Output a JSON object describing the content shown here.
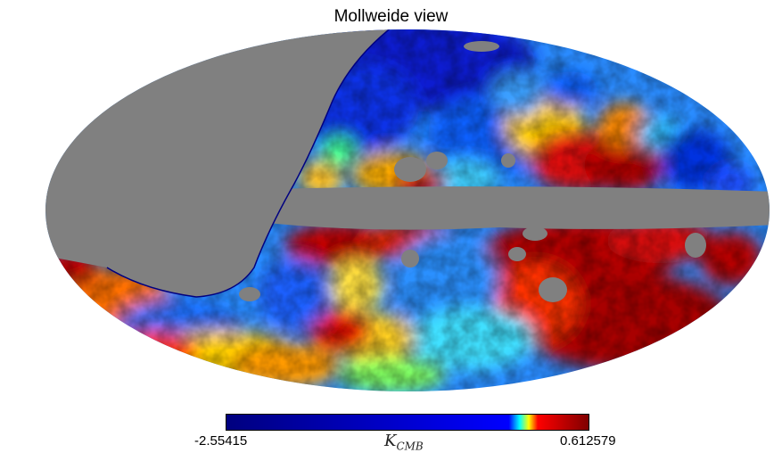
{
  "title": "Mollweide view",
  "projection": "mollweide",
  "colormap": "jet",
  "mask_color": "#808080",
  "colorbar": {
    "min_label": "-2.55415",
    "max_label": "0.612579",
    "unit_main": "K",
    "unit_sub": "CMB"
  }
}
